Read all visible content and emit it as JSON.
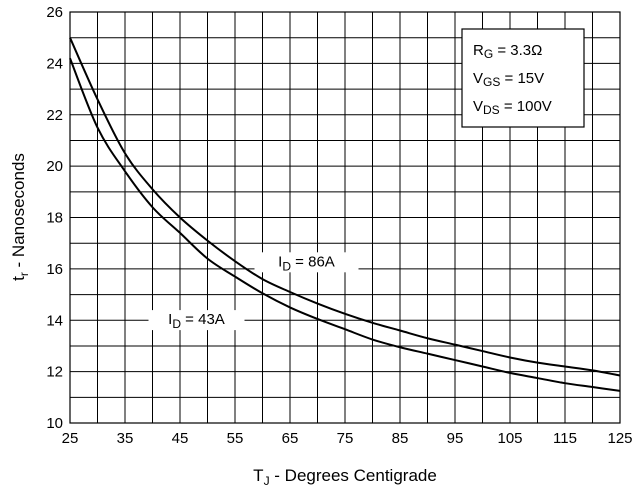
{
  "chart_data": {
    "type": "line",
    "xlabel": "T",
    "xlabel_sub": "J",
    "xlabel_rest": " - Degrees Centigrade",
    "ylabel": "t",
    "ylabel_sub": "r",
    "ylabel_rest": " - Nanoseconds",
    "xlim": [
      25,
      125
    ],
    "ylim": [
      10,
      26
    ],
    "xticks": [
      25,
      35,
      45,
      55,
      65,
      75,
      85,
      95,
      105,
      115,
      125
    ],
    "yticks": [
      10,
      12,
      14,
      16,
      18,
      20,
      22,
      24,
      26
    ],
    "minor_x": [
      30,
      40,
      50,
      60,
      70,
      80,
      90,
      100,
      110,
      120
    ],
    "minor_y": [
      11,
      13,
      15,
      17,
      19,
      21,
      23,
      25
    ],
    "grid": true,
    "series": [
      {
        "name": "I D = 86A",
        "label_main": "I",
        "label_sub": "D",
        "label_rest": " = 86A",
        "x": [
          25,
          30,
          35,
          40,
          45,
          50,
          55,
          60,
          65,
          70,
          75,
          80,
          85,
          90,
          95,
          100,
          105,
          110,
          115,
          120,
          125
        ],
        "y": [
          25.0,
          22.6,
          20.5,
          19.1,
          18.0,
          17.1,
          16.3,
          15.6,
          15.1,
          14.65,
          14.25,
          13.9,
          13.6,
          13.3,
          13.05,
          12.8,
          12.55,
          12.35,
          12.2,
          12.05,
          11.85
        ]
      },
      {
        "name": "I D = 43A",
        "label_main": "I",
        "label_sub": "D",
        "label_rest": " = 43A",
        "x": [
          25,
          30,
          35,
          40,
          45,
          50,
          55,
          60,
          65,
          70,
          75,
          80,
          85,
          90,
          95,
          100,
          105,
          110,
          115,
          120,
          125
        ],
        "y": [
          24.2,
          21.5,
          19.8,
          18.4,
          17.4,
          16.4,
          15.7,
          15.05,
          14.5,
          14.05,
          13.65,
          13.25,
          12.95,
          12.7,
          12.45,
          12.2,
          11.95,
          11.75,
          11.55,
          11.4,
          11.25
        ]
      }
    ],
    "annotation": [
      {
        "main": "R",
        "sub": "G",
        "rest": " = 3.3Ω"
      },
      {
        "main": "V",
        "sub": "GS",
        "rest": " = 15V"
      },
      {
        "main": "V",
        "sub": "DS",
        "rest": " = 100V"
      }
    ]
  }
}
